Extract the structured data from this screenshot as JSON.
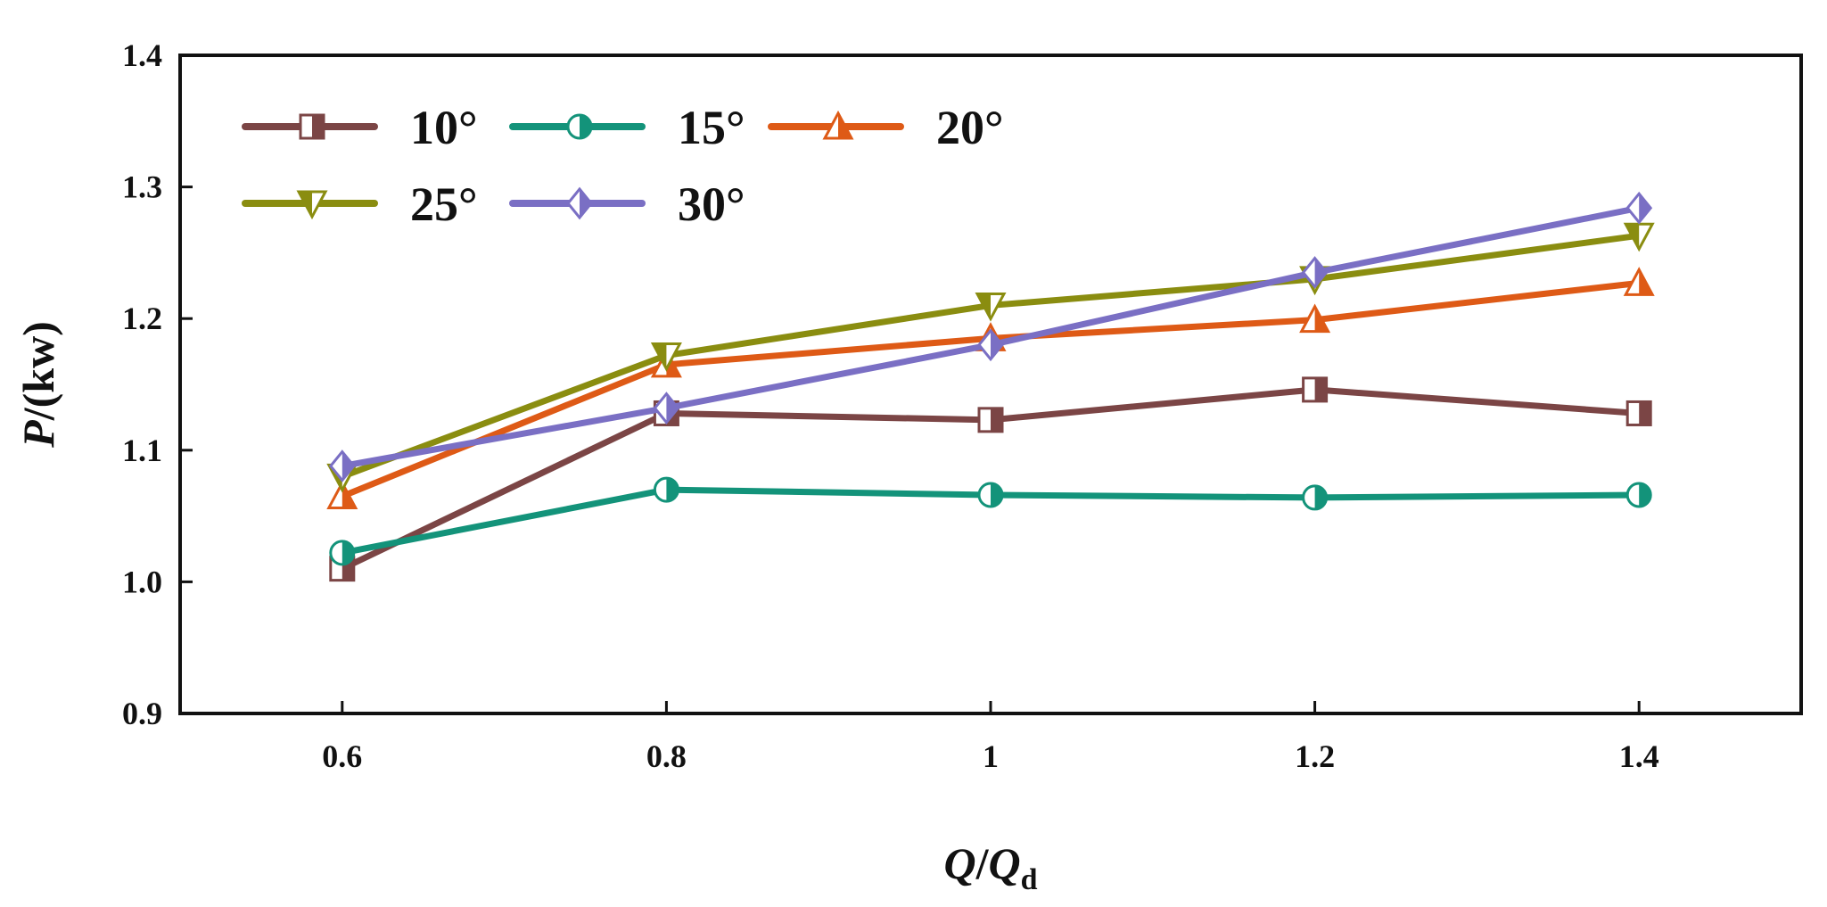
{
  "chart_data": {
    "type": "line",
    "title": "",
    "xlabel": {
      "main": "Q",
      "sep": "/",
      "denom": "Q",
      "sub": "d"
    },
    "ylabel": {
      "main": "P",
      "rest": "/(kw)"
    },
    "x": [
      0.6,
      0.8,
      1.0,
      1.2,
      1.4
    ],
    "x_tick_labels": [
      "0.6",
      "0.8",
      "1",
      "1.2",
      "1.4"
    ],
    "xlim": [
      0.5,
      1.5
    ],
    "ylim": [
      0.9,
      1.4
    ],
    "y_ticks": [
      0.9,
      1.0,
      1.1,
      1.2,
      1.3,
      1.4
    ],
    "y_tick_labels": [
      "0.9",
      "1.0",
      "1.1",
      "1.2",
      "1.3",
      "1.4"
    ],
    "legend_position": "top-left",
    "series": [
      {
        "name": "10°",
        "color": "#7b4545",
        "marker": "square-half",
        "values": [
          1.01,
          1.128,
          1.123,
          1.146,
          1.128
        ]
      },
      {
        "name": "15°",
        "color": "#13937a",
        "marker": "circle-half",
        "values": [
          1.022,
          1.07,
          1.066,
          1.064,
          1.066
        ]
      },
      {
        "name": "20°",
        "color": "#de5a16",
        "marker": "triangle-up-half",
        "values": [
          1.065,
          1.165,
          1.185,
          1.199,
          1.227
        ]
      },
      {
        "name": "25°",
        "color": "#8a8d10",
        "marker": "triangle-down-half",
        "values": [
          1.08,
          1.172,
          1.21,
          1.23,
          1.263
        ]
      },
      {
        "name": "30°",
        "color": "#7a6fc4",
        "marker": "diamond-half",
        "values": [
          1.088,
          1.132,
          1.18,
          1.235,
          1.284
        ]
      }
    ]
  }
}
